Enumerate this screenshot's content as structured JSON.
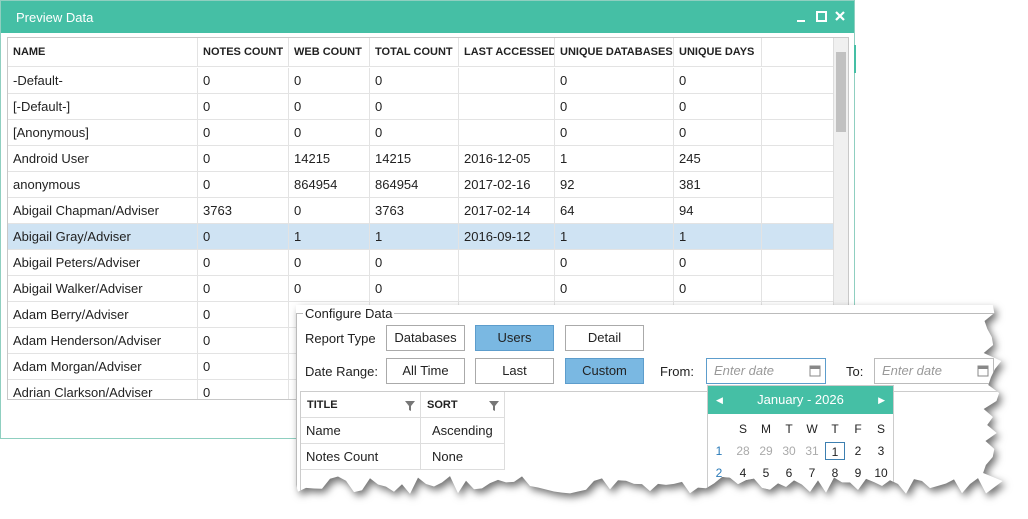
{
  "window": {
    "title": "Preview Data"
  },
  "table": {
    "columns": [
      "NAME",
      "NOTES COUNT",
      "WEB COUNT",
      "TOTAL COUNT",
      "LAST ACCESSED",
      "UNIQUE DATABASES",
      "UNIQUE DAYS"
    ],
    "rows": [
      [
        "-Default-",
        0,
        0,
        0,
        null,
        0,
        0
      ],
      [
        "[-Default-]",
        0,
        0,
        0,
        null,
        0,
        0
      ],
      [
        "[Anonymous]",
        0,
        0,
        0,
        null,
        0,
        0
      ],
      [
        "Android User",
        0,
        14215,
        14215,
        "2016-12-05",
        1,
        245
      ],
      [
        "anonymous",
        0,
        864954,
        864954,
        "2017-02-16",
        92,
        381
      ],
      [
        "Abigail Chapman/Adviser",
        3763,
        0,
        3763,
        "2017-02-14",
        64,
        94
      ],
      [
        "Abigail Gray/Adviser",
        0,
        1,
        1,
        "2016-09-12",
        1,
        1
      ],
      [
        "Abigail Peters/Adviser",
        0,
        0,
        0,
        null,
        0,
        0
      ],
      [
        "Abigail Walker/Adviser",
        0,
        0,
        0,
        null,
        0,
        0
      ],
      [
        "Adam Berry/Adviser",
        0
      ],
      [
        "Adam Henderson/Adviser",
        0
      ],
      [
        "Adam Morgan/Adviser",
        0
      ],
      [
        "Adrian Clarkson/Adviser",
        0
      ]
    ]
  },
  "configure": {
    "legend": "Configure Data",
    "report_type_label": "Report Type",
    "report_types": [
      "Databases",
      "Users",
      "Detail"
    ],
    "date_range_label": "Date Range:",
    "date_ranges": [
      "All Time",
      "Last",
      "Custom"
    ],
    "from_label": "From:",
    "from_placeholder": "Enter date",
    "to_label": "To:",
    "to_placeholder": "Enter date",
    "grid": {
      "columns": [
        "TITLE",
        "SORT"
      ],
      "rows": [
        [
          "Name",
          "Ascending"
        ],
        [
          "Notes Count",
          "None"
        ]
      ]
    },
    "calendar": {
      "title": "January - 2026",
      "weekdays": [
        "S",
        "M",
        "T",
        "W",
        "T",
        "F",
        "S"
      ],
      "weeks": [
        {
          "number": "1",
          "days": [
            "28",
            "29",
            "30",
            "31",
            "1",
            "2",
            "3"
          ]
        },
        {
          "number": "2",
          "days": [
            "4",
            "5",
            "6",
            "7",
            "8",
            "9",
            "10"
          ]
        }
      ]
    }
  }
}
